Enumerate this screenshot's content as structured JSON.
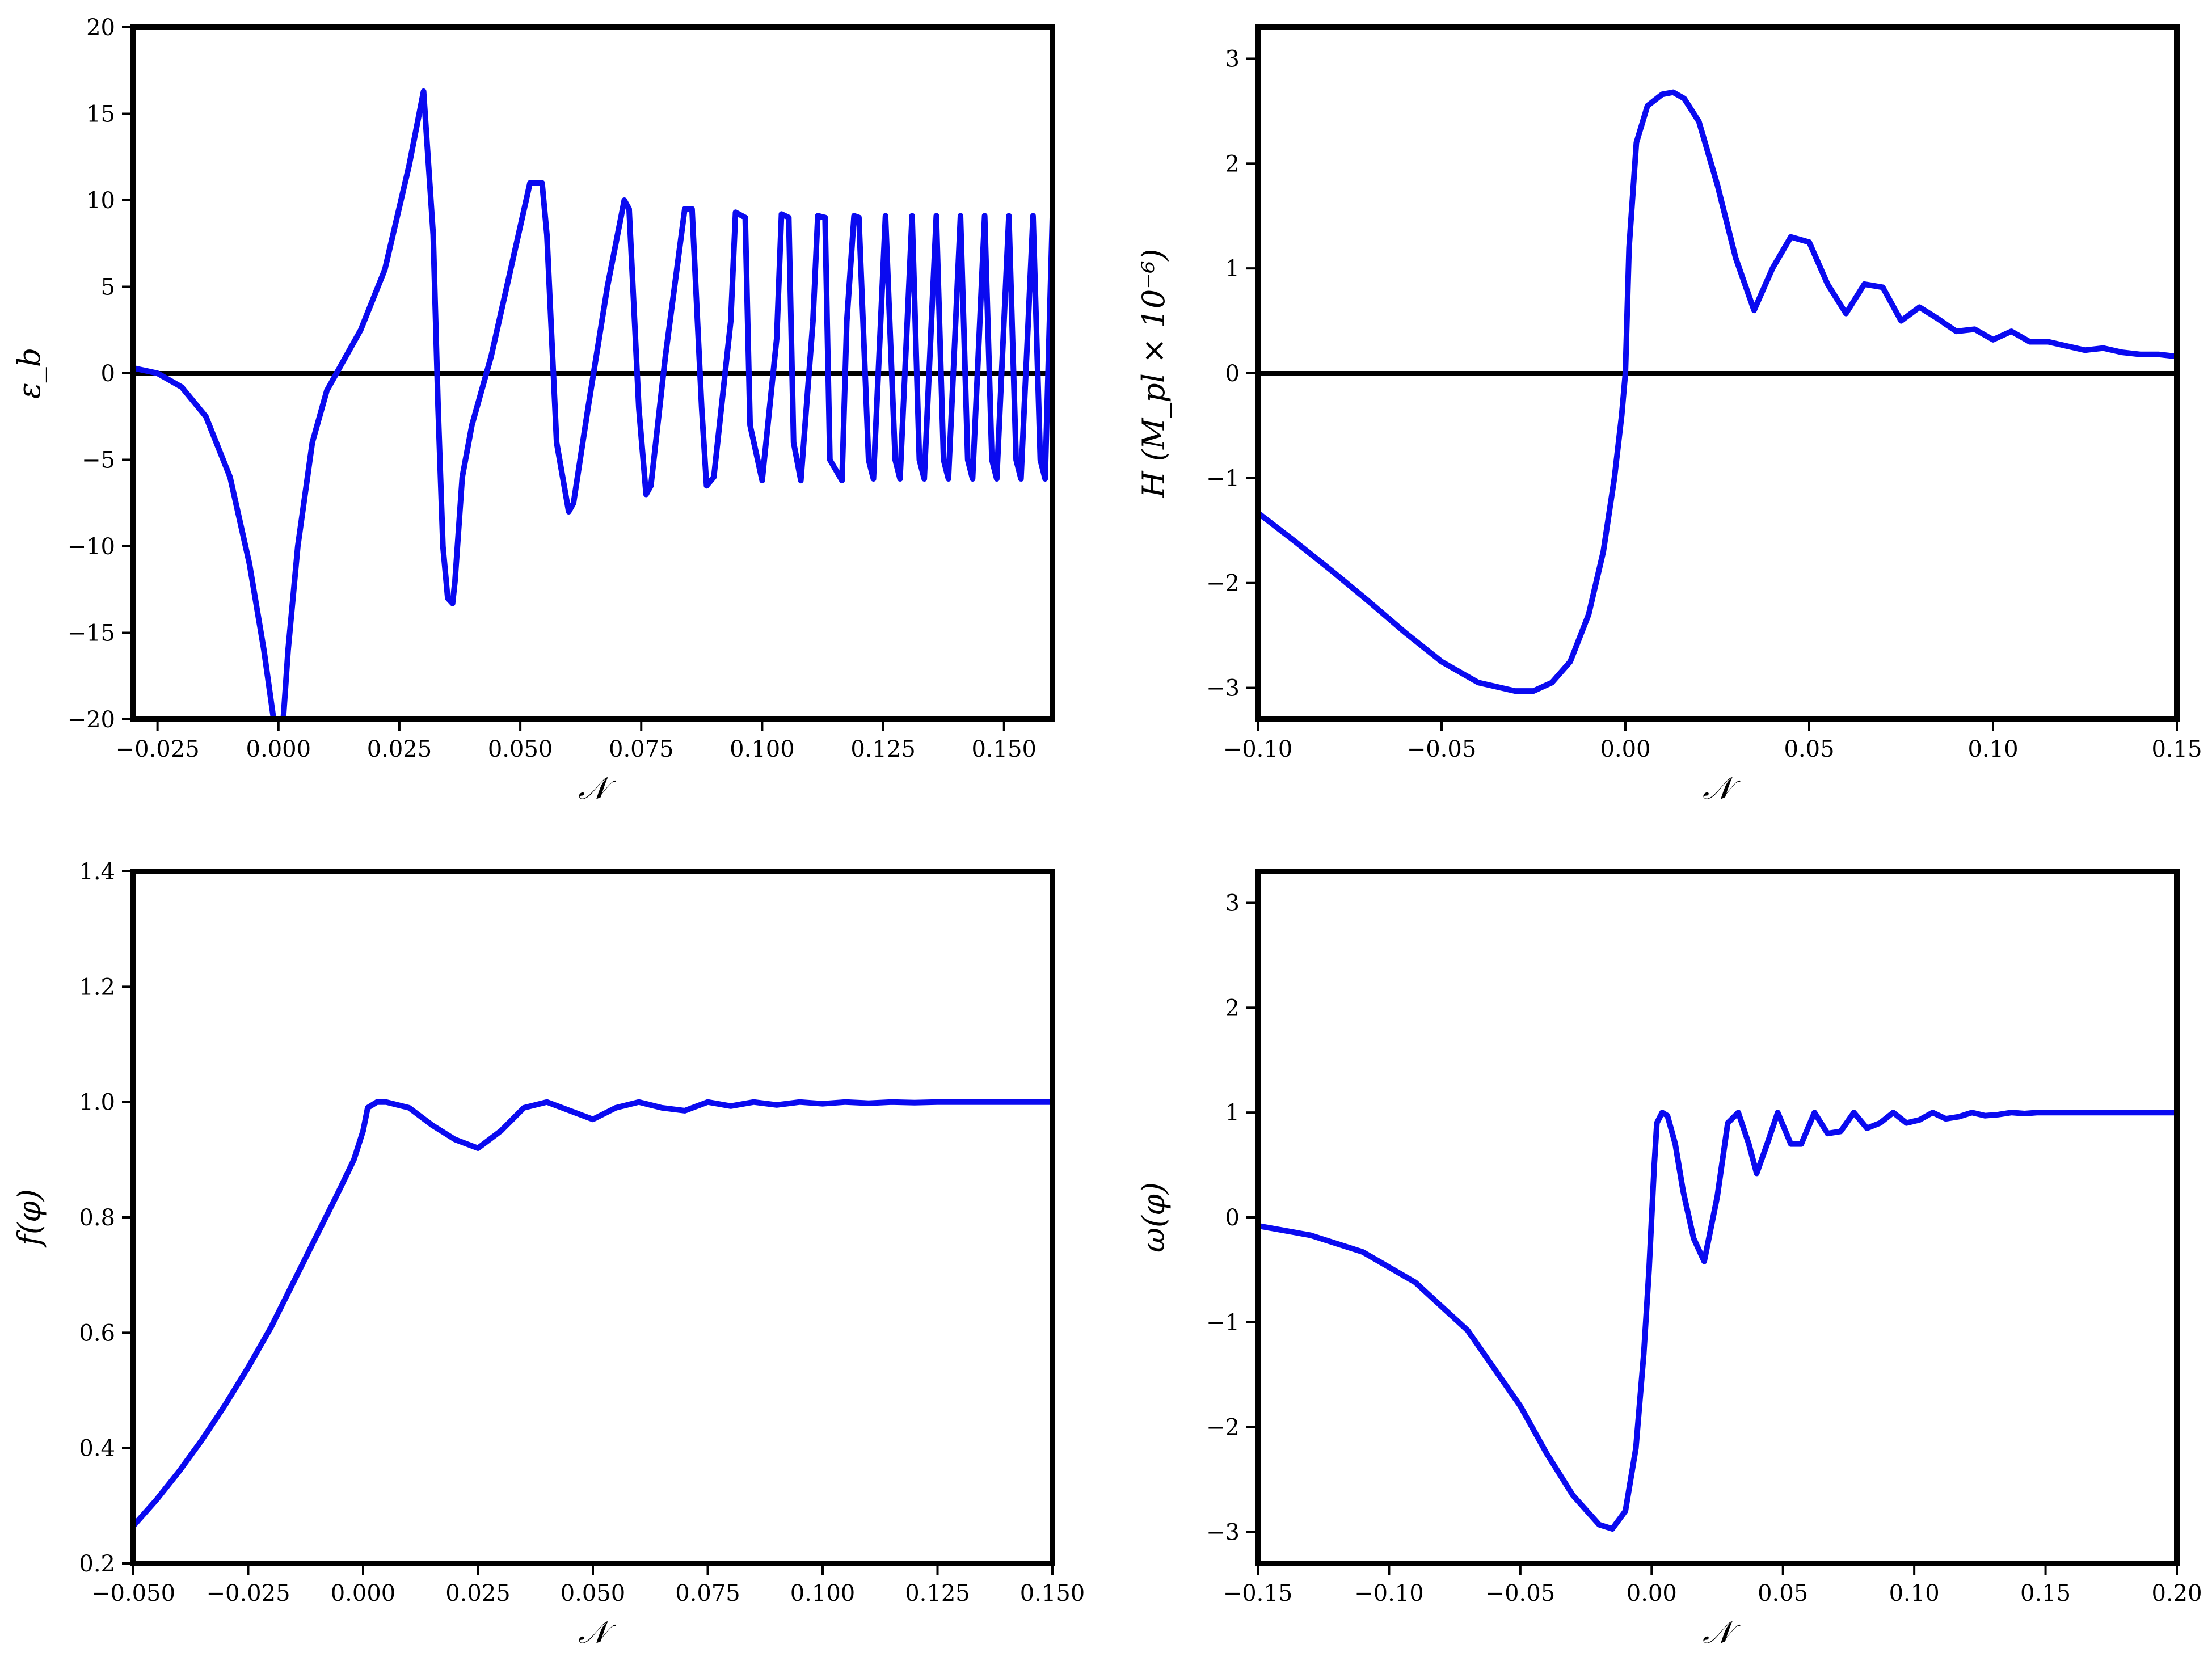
{
  "colors": {
    "series": "#0a0af0",
    "frame": "#000000",
    "background": "#ffffff"
  },
  "chart_data": [
    {
      "id": "eps_b",
      "type": "line",
      "xlabel": "𝒩",
      "ylabel": "ε_b",
      "xlim": [
        -0.03,
        0.16
      ],
      "ylim": [
        -20,
        20
      ],
      "xticks": [
        -0.025,
        0.0,
        0.025,
        0.05,
        0.075,
        0.1,
        0.125,
        0.15
      ],
      "xtick_labels": [
        "−0.025",
        "0.000",
        "0.025",
        "0.050",
        "0.075",
        "0.100",
        "0.125",
        "0.150"
      ],
      "yticks": [
        -20,
        -15,
        -10,
        -5,
        0,
        5,
        10,
        15,
        20
      ],
      "ytick_labels": [
        "−20",
        "−15",
        "−10",
        "−5",
        "0",
        "5",
        "10",
        "15",
        "20"
      ],
      "zero_line": true,
      "grid": false,
      "series": [
        {
          "x": [
            -0.03,
            -0.025,
            -0.02,
            -0.015,
            -0.01,
            -0.006,
            -0.003,
            -0.001,
            0.0,
            0.001,
            0.002,
            0.004,
            0.007,
            0.01,
            0.013,
            0.017,
            0.022,
            0.027,
            0.03,
            0.032,
            0.033,
            0.034,
            0.035,
            0.036,
            0.0365,
            0.038,
            0.04,
            0.044,
            0.048,
            0.052,
            0.0545,
            0.0555,
            0.0575,
            0.06,
            0.061,
            0.064,
            0.068,
            0.0715,
            0.0725,
            0.0745,
            0.076,
            0.077,
            0.08,
            0.084,
            0.0855,
            0.0875,
            0.0885,
            0.09,
            0.0935,
            0.0945,
            0.0965,
            0.0975,
            0.1,
            0.103,
            0.104,
            0.1055,
            0.1065,
            0.108,
            0.1105,
            0.1115,
            0.113,
            0.114,
            0.1165,
            0.1175,
            0.119,
            0.12,
            0.122,
            0.123,
            0.1245,
            0.1255,
            0.1275,
            0.1285,
            0.13,
            0.131,
            0.1325,
            0.1335,
            0.135,
            0.136,
            0.1375,
            0.1385,
            0.14,
            0.141,
            0.1425,
            0.1435,
            0.145,
            0.146,
            0.1475,
            0.1485,
            0.15,
            0.151,
            0.1525,
            0.1535,
            0.155,
            0.156,
            0.1575,
            0.1585,
            0.16
          ],
          "y": [
            0.3,
            0.0,
            -0.8,
            -2.5,
            -6,
            -11,
            -16,
            -20,
            -20,
            -20,
            -16,
            -10,
            -4,
            -1,
            0.5,
            2.5,
            6,
            12,
            16.3,
            8,
            -2,
            -10,
            -13,
            -13.3,
            -12,
            -6,
            -3,
            1,
            6,
            11,
            11,
            8,
            -4,
            -8,
            -7.5,
            -2,
            5,
            10,
            9.5,
            -2,
            -7,
            -6.5,
            1,
            9.5,
            9.5,
            -2,
            -6.5,
            -6,
            3,
            9.3,
            9,
            -3,
            -6.2,
            2,
            9.2,
            9,
            -4,
            -6.2,
            3,
            9.1,
            9,
            -5,
            -6.2,
            3,
            9.1,
            9,
            -5,
            -6.1,
            3,
            9.1,
            -5,
            -6.1,
            3,
            9.1,
            -5,
            -6.1,
            3,
            9.1,
            -5,
            -6.1,
            3,
            9.1,
            -5,
            -6.1,
            3,
            9.1,
            -5,
            -6.1,
            3,
            9.1,
            -5,
            -6.1,
            3,
            9.1,
            -5,
            -6.1,
            9
          ]
        }
      ]
    },
    {
      "id": "hubble",
      "type": "line",
      "xlabel": "𝒩",
      "ylabel": "H (M_pl × 10⁻⁶)",
      "xlim": [
        -0.1,
        0.15
      ],
      "ylim": [
        -3.3,
        3.3
      ],
      "xticks": [
        -0.1,
        -0.05,
        0.0,
        0.05,
        0.1,
        0.15
      ],
      "xtick_labels": [
        "−0.10",
        "−0.05",
        "0.00",
        "0.05",
        "0.10",
        "0.15"
      ],
      "yticks": [
        -3,
        -2,
        -1,
        0,
        1,
        2,
        3
      ],
      "ytick_labels": [
        "−3",
        "−2",
        "−1",
        "0",
        "1",
        "2",
        "3"
      ],
      "zero_line": true,
      "grid": false,
      "series": [
        {
          "x": [
            -0.1,
            -0.09,
            -0.08,
            -0.07,
            -0.06,
            -0.05,
            -0.04,
            -0.03,
            -0.025,
            -0.02,
            -0.015,
            -0.01,
            -0.006,
            -0.003,
            -0.001,
            0.0,
            0.001,
            0.003,
            0.006,
            0.01,
            0.013,
            0.016,
            0.02,
            0.025,
            0.03,
            0.035,
            0.04,
            0.045,
            0.05,
            0.055,
            0.06,
            0.065,
            0.07,
            0.075,
            0.08,
            0.085,
            0.09,
            0.095,
            0.1,
            0.105,
            0.11,
            0.115,
            0.12,
            0.125,
            0.13,
            0.135,
            0.14,
            0.145,
            0.15
          ],
          "y": [
            -1.33,
            -1.6,
            -1.88,
            -2.17,
            -2.47,
            -2.75,
            -2.95,
            -3.03,
            -3.03,
            -2.95,
            -2.75,
            -2.3,
            -1.7,
            -1.0,
            -0.4,
            0.0,
            1.2,
            2.2,
            2.55,
            2.66,
            2.68,
            2.62,
            2.4,
            1.8,
            1.1,
            0.6,
            1.0,
            1.3,
            1.25,
            0.85,
            0.57,
            0.85,
            0.82,
            0.5,
            0.63,
            0.52,
            0.4,
            0.42,
            0.32,
            0.4,
            0.3,
            0.3,
            0.26,
            0.22,
            0.24,
            0.2,
            0.18,
            0.18,
            0.16
          ]
        }
      ]
    },
    {
      "id": "f_phi",
      "type": "line",
      "xlabel": "𝒩",
      "ylabel": "f(φ)",
      "xlim": [
        -0.05,
        0.15
      ],
      "ylim": [
        0.2,
        1.4
      ],
      "xticks": [
        -0.05,
        -0.025,
        0.0,
        0.025,
        0.05,
        0.075,
        0.1,
        0.125,
        0.15
      ],
      "xtick_labels": [
        "−0.050",
        "−0.025",
        "0.000",
        "0.025",
        "0.050",
        "0.075",
        "0.100",
        "0.125",
        "0.150"
      ],
      "yticks": [
        0.2,
        0.4,
        0.6,
        0.8,
        1.0,
        1.2,
        1.4
      ],
      "ytick_labels": [
        "0.2",
        "0.4",
        "0.6",
        "0.8",
        "1.0",
        "1.2",
        "1.4"
      ],
      "zero_line": false,
      "grid": false,
      "series": [
        {
          "x": [
            -0.05,
            -0.045,
            -0.04,
            -0.035,
            -0.03,
            -0.025,
            -0.02,
            -0.015,
            -0.01,
            -0.005,
            -0.002,
            0.0,
            0.001,
            0.003,
            0.005,
            0.01,
            0.015,
            0.02,
            0.025,
            0.03,
            0.035,
            0.04,
            0.045,
            0.05,
            0.055,
            0.06,
            0.065,
            0.07,
            0.075,
            0.08,
            0.085,
            0.09,
            0.095,
            0.1,
            0.105,
            0.11,
            0.115,
            0.12,
            0.125,
            0.13,
            0.135,
            0.14,
            0.145,
            0.15
          ],
          "y": [
            0.265,
            0.31,
            0.36,
            0.415,
            0.475,
            0.54,
            0.61,
            0.69,
            0.77,
            0.85,
            0.9,
            0.95,
            0.99,
            1.0,
            1.0,
            0.99,
            0.96,
            0.935,
            0.92,
            0.95,
            0.99,
            1.0,
            0.985,
            0.97,
            0.99,
            1.0,
            0.99,
            0.985,
            1.0,
            0.993,
            1.0,
            0.995,
            1.0,
            0.997,
            1.0,
            0.998,
            1.0,
            0.999,
            1.0,
            1.0,
            1.0,
            1.0,
            1.0,
            1.0
          ]
        }
      ]
    },
    {
      "id": "omega_phi",
      "type": "line",
      "xlabel": "𝒩",
      "ylabel": "ω(φ)",
      "xlim": [
        -0.15,
        0.2
      ],
      "ylim": [
        -3.3,
        3.3
      ],
      "xticks": [
        -0.15,
        -0.1,
        -0.05,
        0.0,
        0.05,
        0.1,
        0.15,
        0.2
      ],
      "xtick_labels": [
        "−0.15",
        "−0.10",
        "−0.05",
        "0.00",
        "0.05",
        "0.10",
        "0.15",
        "0.20"
      ],
      "yticks": [
        -3,
        -2,
        -1,
        0,
        1,
        2,
        3
      ],
      "ytick_labels": [
        "−3",
        "−2",
        "−1",
        "0",
        "1",
        "2",
        "3"
      ],
      "zero_line": false,
      "grid": false,
      "series": [
        {
          "x": [
            -0.15,
            -0.13,
            -0.11,
            -0.09,
            -0.07,
            -0.05,
            -0.04,
            -0.03,
            -0.02,
            -0.015,
            -0.01,
            -0.006,
            -0.003,
            -0.001,
            0.0,
            0.001,
            0.002,
            0.004,
            0.006,
            0.009,
            0.012,
            0.016,
            0.02,
            0.025,
            0.029,
            0.033,
            0.037,
            0.04,
            0.044,
            0.048,
            0.053,
            0.057,
            0.062,
            0.067,
            0.072,
            0.077,
            0.082,
            0.087,
            0.092,
            0.097,
            0.102,
            0.107,
            0.112,
            0.117,
            0.122,
            0.127,
            0.132,
            0.137,
            0.142,
            0.147,
            0.152,
            0.157,
            0.162,
            0.167,
            0.172,
            0.18,
            0.19,
            0.2
          ],
          "y": [
            -0.08,
            -0.17,
            -0.33,
            -0.62,
            -1.08,
            -1.8,
            -2.25,
            -2.65,
            -2.93,
            -2.97,
            -2.8,
            -2.2,
            -1.3,
            -0.5,
            0.0,
            0.5,
            0.9,
            1.0,
            0.97,
            0.7,
            0.25,
            -0.2,
            -0.42,
            0.2,
            0.9,
            1.0,
            0.7,
            0.42,
            0.7,
            1.0,
            0.7,
            0.7,
            1.0,
            0.8,
            0.82,
            1.0,
            0.85,
            0.9,
            1.0,
            0.9,
            0.93,
            1.0,
            0.94,
            0.96,
            1.0,
            0.97,
            0.98,
            1.0,
            0.99,
            1.0,
            1.0,
            1.0,
            1.0,
            1.0,
            1.0,
            1.0,
            1.0,
            1.0
          ]
        }
      ]
    }
  ]
}
